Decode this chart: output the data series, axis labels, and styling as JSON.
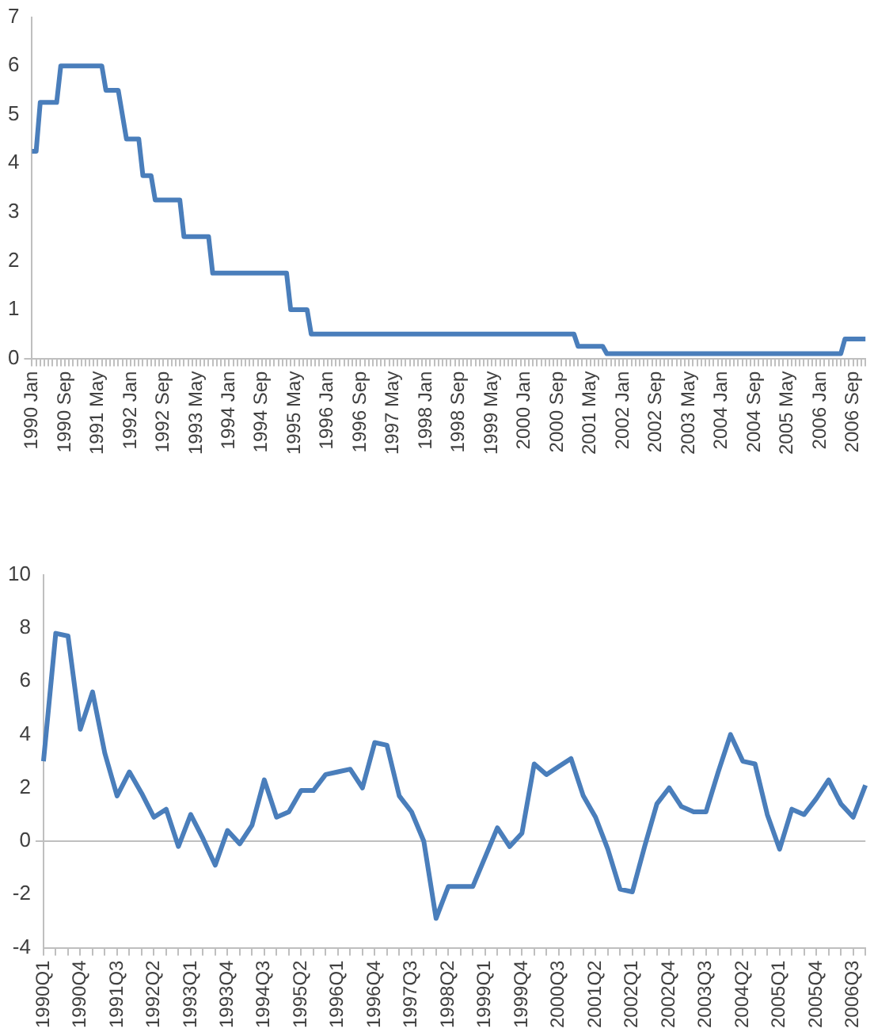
{
  "chart_data": [
    {
      "type": "line",
      "categories": [
        "1990 Jan",
        null,
        null,
        null,
        null,
        null,
        null,
        null,
        "1990 Sep",
        null,
        null,
        null,
        null,
        null,
        null,
        null,
        "1991 May",
        null,
        null,
        null,
        null,
        null,
        null,
        null,
        "1992 Jan",
        null,
        null,
        null,
        null,
        null,
        null,
        null,
        "1992 Sep",
        null,
        null,
        null,
        null,
        null,
        null,
        null,
        "1993 May",
        null,
        null,
        null,
        null,
        null,
        null,
        null,
        "1994 Jan",
        null,
        null,
        null,
        null,
        null,
        null,
        null,
        "1994 Sep",
        null,
        null,
        null,
        null,
        null,
        null,
        null,
        "1995 May",
        null,
        null,
        null,
        null,
        null,
        null,
        null,
        "1996 Jan",
        null,
        null,
        null,
        null,
        null,
        null,
        null,
        "1996 Sep",
        null,
        null,
        null,
        null,
        null,
        null,
        null,
        "1997 May",
        null,
        null,
        null,
        null,
        null,
        null,
        null,
        "1998 Jan",
        null,
        null,
        null,
        null,
        null,
        null,
        null,
        "1998 Sep",
        null,
        null,
        null,
        null,
        null,
        null,
        null,
        "1999 May",
        null,
        null,
        null,
        null,
        null,
        null,
        null,
        "2000 Jan",
        null,
        null,
        null,
        null,
        null,
        null,
        null,
        "2000 Sep",
        null,
        null,
        null,
        null,
        null,
        null,
        null,
        "2001 May",
        null,
        null,
        null,
        null,
        null,
        null,
        null,
        "2002 Jan",
        null,
        null,
        null,
        null,
        null,
        null,
        null,
        "2002 Sep",
        null,
        null,
        null,
        null,
        null,
        null,
        null,
        "2003 May",
        null,
        null,
        null,
        null,
        null,
        null,
        null,
        "2004 Jan",
        null,
        null,
        null,
        null,
        null,
        null,
        null,
        "2004 Sep",
        null,
        null,
        null,
        null,
        null,
        null,
        null,
        "2005 May",
        null,
        null,
        null,
        null,
        null,
        null,
        null,
        "2006 Jan",
        null,
        null,
        null,
        null,
        null,
        null,
        null,
        "2006 Sep",
        null,
        null,
        null
      ],
      "values": [
        4.25,
        4.25,
        5.25,
        5.25,
        5.25,
        5.25,
        5.25,
        6,
        6,
        6,
        6,
        6,
        6,
        6,
        6,
        6,
        6,
        6,
        5.5,
        5.5,
        5.5,
        5.5,
        5,
        4.5,
        4.5,
        4.5,
        4.5,
        3.75,
        3.75,
        3.75,
        3.25,
        3.25,
        3.25,
        3.25,
        3.25,
        3.25,
        3.25,
        2.5,
        2.5,
        2.5,
        2.5,
        2.5,
        2.5,
        2.5,
        1.75,
        1.75,
        1.75,
        1.75,
        1.75,
        1.75,
        1.75,
        1.75,
        1.75,
        1.75,
        1.75,
        1.75,
        1.75,
        1.75,
        1.75,
        1.75,
        1.75,
        1.75,
        1.75,
        1,
        1,
        1,
        1,
        1,
        0.5,
        0.5,
        0.5,
        0.5,
        0.5,
        0.5,
        0.5,
        0.5,
        0.5,
        0.5,
        0.5,
        0.5,
        0.5,
        0.5,
        0.5,
        0.5,
        0.5,
        0.5,
        0.5,
        0.5,
        0.5,
        0.5,
        0.5,
        0.5,
        0.5,
        0.5,
        0.5,
        0.5,
        0.5,
        0.5,
        0.5,
        0.5,
        0.5,
        0.5,
        0.5,
        0.5,
        0.5,
        0.5,
        0.5,
        0.5,
        0.5,
        0.5,
        0.5,
        0.5,
        0.5,
        0.5,
        0.5,
        0.5,
        0.5,
        0.5,
        0.5,
        0.5,
        0.5,
        0.5,
        0.5,
        0.5,
        0.5,
        0.5,
        0.5,
        0.5,
        0.5,
        0.5,
        0.5,
        0.5,
        0.5,
        0.25,
        0.25,
        0.25,
        0.25,
        0.25,
        0.25,
        0.25,
        0.1,
        0.1,
        0.1,
        0.1,
        0.1,
        0.1,
        0.1,
        0.1,
        0.1,
        0.1,
        0.1,
        0.1,
        0.1,
        0.1,
        0.1,
        0.1,
        0.1,
        0.1,
        0.1,
        0.1,
        0.1,
        0.1,
        0.1,
        0.1,
        0.1,
        0.1,
        0.1,
        0.1,
        0.1,
        0.1,
        0.1,
        0.1,
        0.1,
        0.1,
        0.1,
        0.1,
        0.1,
        0.1,
        0.1,
        0.1,
        0.1,
        0.1,
        0.1,
        0.1,
        0.1,
        0.1,
        0.1,
        0.1,
        0.1,
        0.1,
        0.1,
        0.1,
        0.1,
        0.1,
        0.1,
        0.1,
        0.1,
        0.1,
        0.4,
        0.4,
        0.4,
        0.4,
        0.4,
        0.4
      ],
      "color": "#4a7ebb",
      "ylim": [
        0,
        7
      ],
      "yticks": [
        0,
        1,
        2,
        3,
        4,
        5,
        6,
        7
      ]
    },
    {
      "type": "line",
      "categories": [
        "1990Q1",
        null,
        null,
        "1990Q4",
        null,
        null,
        "1991Q3",
        null,
        null,
        "1992Q2",
        null,
        null,
        "1993Q1",
        null,
        null,
        "1993Q4",
        null,
        null,
        "1994Q3",
        null,
        null,
        "1995Q2",
        null,
        null,
        "1996Q1",
        null,
        null,
        "1996Q4",
        null,
        null,
        "1997Q3",
        null,
        null,
        "1998Q2",
        null,
        null,
        "1999Q1",
        null,
        null,
        "1999Q4",
        null,
        null,
        "2000Q3",
        null,
        null,
        "2001Q2",
        null,
        null,
        "2002Q1",
        null,
        null,
        "2002Q4",
        null,
        null,
        "2003Q3",
        null,
        null,
        "2004Q2",
        null,
        null,
        "2005Q1",
        null,
        null,
        "2005Q4",
        null,
        null,
        "2006Q3",
        null
      ],
      "values": [
        3.0,
        7.8,
        7.7,
        4.2,
        5.6,
        3.3,
        1.7,
        2.6,
        1.8,
        0.9,
        1.2,
        -0.2,
        1.0,
        0.1,
        -0.9,
        0.4,
        -0.1,
        0.6,
        2.3,
        0.9,
        1.1,
        1.9,
        1.9,
        2.5,
        2.6,
        2.7,
        2.0,
        3.7,
        3.6,
        1.7,
        1.1,
        0.0,
        -2.9,
        -1.7,
        -1.7,
        -1.7,
        -0.6,
        0.5,
        -0.2,
        0.3,
        2.9,
        2.5,
        2.8,
        3.1,
        1.7,
        0.9,
        -0.3,
        -1.8,
        -1.9,
        -0.2,
        1.4,
        2.0,
        1.3,
        1.1,
        1.1,
        2.6,
        4.0,
        3.0,
        2.9,
        1.0,
        -0.3,
        1.2,
        1.0,
        1.6,
        2.3,
        1.4,
        0.9,
        2.1
      ],
      "color": "#4a7ebb",
      "ylim": [
        -4,
        10
      ],
      "yticks": [
        -4,
        -2,
        0,
        2,
        4,
        6,
        8,
        10
      ]
    }
  ]
}
